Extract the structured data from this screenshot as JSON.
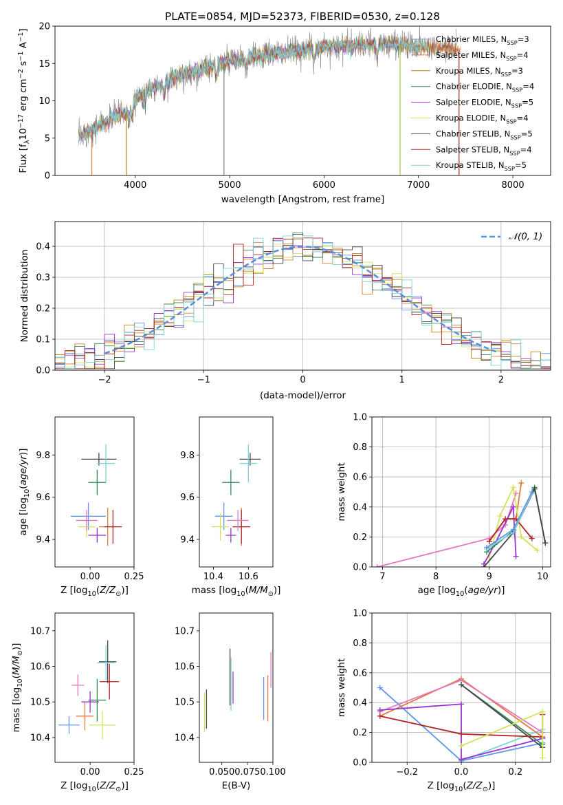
{
  "figure": {
    "title": "PLATE=0854, MJD=52373, FIBERID=0530, z=0.128"
  },
  "colors": {
    "Chabrier MILES": "#6495ed",
    "Salpeter MILES": "#e07b39",
    "Kroupa MILES": "#b8860b",
    "Chabrier ELODIE": "#2e8b57",
    "Salpeter ELODIE": "#9932cc",
    "Kroupa ELODIE": "#d4e157",
    "Chabrier STELIB": "#444444",
    "Salpeter STELIB": "#b22222",
    "Kroupa STELIB": "#7fd3dd",
    "normal": "#5b8fd8",
    "pink": "#e377c2"
  },
  "chart_data": [
    {
      "type": "line",
      "title": "PLATE=0854, MJD=52373, FIBERID=0530, z=0.128",
      "xlabel": "wavelength [Angstrom, rest frame]",
      "ylabel": "Flux [f",
      "ylabel_parts": [
        "Flux [f",
        "λ",
        "10",
        "−17",
        " erg cm",
        "−2",
        " s",
        "−1",
        " A",
        "−1",
        "]"
      ],
      "xlim": [
        3150,
        8400
      ],
      "ylim": [
        0,
        20
      ],
      "xticks": [
        4000,
        5000,
        6000,
        7000,
        8000
      ],
      "yticks": [
        0,
        5,
        10,
        15,
        20
      ],
      "legend_position": "top-right",
      "legend": [
        {
          "name": "Chabrier MILES, N",
          "sub": "SSP",
          "tail": "=3"
        },
        {
          "name": "Salpeter MILES, N",
          "sub": "SSP",
          "tail": "=4"
        },
        {
          "name": "Kroupa MILES, N",
          "sub": "SSP",
          "tail": "=3"
        },
        {
          "name": "Chabrier ELODIE, N",
          "sub": "SSP",
          "tail": "=4"
        },
        {
          "name": "Salpeter ELODIE, N",
          "sub": "SSP",
          "tail": "=5"
        },
        {
          "name": "Kroupa ELODIE, N",
          "sub": "SSP",
          "tail": "=4"
        },
        {
          "name": "Chabrier STELIB, N",
          "sub": "SSP",
          "tail": "=5"
        },
        {
          "name": "Salpeter STELIB, N",
          "sub": "SSP",
          "tail": "=4"
        },
        {
          "name": "Kroupa STELIB, N",
          "sub": "SSP",
          "tail": "=5"
        }
      ],
      "continuum": [
        [
          3400,
          5.2
        ],
        [
          3600,
          6.5
        ],
        [
          3700,
          7.2
        ],
        [
          3800,
          8.2
        ],
        [
          3900,
          8.4
        ],
        [
          4000,
          10.3
        ],
        [
          4100,
          11.2
        ],
        [
          4200,
          11.8
        ],
        [
          4300,
          12.2
        ],
        [
          4400,
          13.0
        ],
        [
          4600,
          13.8
        ],
        [
          4800,
          14.6
        ],
        [
          5000,
          15.3
        ],
        [
          5200,
          15.7
        ],
        [
          5400,
          16.2
        ],
        [
          5600,
          16.5
        ],
        [
          5800,
          16.9
        ],
        [
          6000,
          17.2
        ],
        [
          6200,
          17.4
        ],
        [
          6400,
          17.4
        ],
        [
          6600,
          17.6
        ],
        [
          6800,
          17.6
        ],
        [
          7000,
          17.3
        ],
        [
          7200,
          17.2
        ],
        [
          7400,
          17.0
        ]
      ],
      "absorption_features": [
        [
          3934,
          6.0
        ],
        [
          3969,
          6.8
        ],
        [
          4102,
          10.0
        ],
        [
          4305,
          10.5
        ],
        [
          4861,
          14.5
        ],
        [
          5175,
          14.0
        ],
        [
          5893,
          16.0
        ],
        [
          6563,
          16.2
        ]
      ]
    },
    {
      "type": "line",
      "xlabel": "(data-model)/error",
      "ylabel": "Normed distribution",
      "xlim": [
        -2.5,
        2.5
      ],
      "ylim": [
        0,
        0.48
      ],
      "xticks": [
        -2,
        -1,
        0,
        1,
        2
      ],
      "xtick_labels": [
        "−2",
        "−1",
        "0",
        "1",
        "2"
      ],
      "yticks": [
        0.0,
        0.1,
        0.2,
        0.3,
        0.4
      ],
      "ytick_labels": [
        "0.0",
        "0.1",
        "0.2",
        "0.3",
        "0.4"
      ],
      "legend": [
        "𝒩(0, 1)"
      ],
      "legend_position": "top-right",
      "bin_width": 0.1,
      "grid": true
    },
    {
      "type": "scatter",
      "xlabel": "Z [log10(Z/Z⊙)]",
      "ylabel": "age  [log10(age/yr)]",
      "xlim": [
        -0.2,
        0.25
      ],
      "ylim": [
        9.27,
        9.98
      ],
      "xticks": [
        0.0,
        0.25
      ],
      "xtick_labels": [
        "0.00",
        "0.25"
      ],
      "yticks": [
        9.4,
        9.6,
        9.8
      ],
      "ytick_labels": [
        "9.4",
        "9.6",
        "9.8"
      ],
      "points": [
        {
          "series": "Chabrier MILES",
          "x": -0.01,
          "y": 9.51,
          "xerr": 0.2,
          "yerr": 0.13
        },
        {
          "series": "Salpeter MILES",
          "x": 0.1,
          "y": 9.46,
          "xerr": 0.1,
          "yerr": 0.18
        },
        {
          "series": "Chabrier ELODIE",
          "x": 0.04,
          "y": 9.67,
          "xerr": 0.1,
          "yerr": 0.12
        },
        {
          "series": "Salpeter ELODIE",
          "x": 0.04,
          "y": 9.42,
          "xerr": 0.1,
          "yerr": 0.07
        },
        {
          "series": "Kroupa ELODIE",
          "x": -0.02,
          "y": 9.46,
          "xerr": 0.1,
          "yerr": 0.1
        },
        {
          "series": "Chabrier STELIB",
          "x": 0.05,
          "y": 9.78,
          "xerr": 0.2,
          "yerr": 0.06
        },
        {
          "series": "Salpeter STELIB",
          "x": 0.13,
          "y": 9.46,
          "xerr": 0.1,
          "yerr": 0.16
        },
        {
          "series": "Kroupa STELIB",
          "x": 0.09,
          "y": 9.76,
          "xerr": 0.1,
          "yerr": 0.18
        },
        {
          "series": "pink",
          "x": -0.02,
          "y": 9.49,
          "xerr": 0.12,
          "yerr": 0.1
        }
      ]
    },
    {
      "type": "scatter",
      "xlabel": "mass [log10(M/M⊙)]",
      "xlim": [
        10.32,
        10.74
      ],
      "ylim": [
        9.27,
        9.98
      ],
      "xticks": [
        10.4,
        10.6
      ],
      "xtick_labels": [
        "10.4",
        "10.6"
      ],
      "yticks": [
        9.4,
        9.6,
        9.8
      ],
      "ytick_labels": [
        "9.4",
        "9.6",
        "9.8"
      ],
      "points": [
        {
          "series": "Chabrier MILES",
          "x": 10.46,
          "y": 9.51,
          "xerr": 0.1,
          "yerr": 0.13
        },
        {
          "series": "Salpeter MILES",
          "x": 10.56,
          "y": 9.46,
          "xerr": 0.1,
          "yerr": 0.18
        },
        {
          "series": "Chabrier ELODIE",
          "x": 10.5,
          "y": 9.67,
          "xerr": 0.1,
          "yerr": 0.12
        },
        {
          "series": "Salpeter ELODIE",
          "x": 10.5,
          "y": 9.42,
          "xerr": 0.06,
          "yerr": 0.07
        },
        {
          "series": "Kroupa ELODIE",
          "x": 10.44,
          "y": 9.46,
          "xerr": 0.1,
          "yerr": 0.13
        },
        {
          "series": "Chabrier STELIB",
          "x": 10.61,
          "y": 9.78,
          "xerr": 0.12,
          "yerr": 0.06
        },
        {
          "series": "Salpeter STELIB",
          "x": 10.56,
          "y": 9.46,
          "xerr": 0.1,
          "yerr": 0.16
        },
        {
          "series": "Kroupa STELIB",
          "x": 10.6,
          "y": 9.76,
          "xerr": 0.1,
          "yerr": 0.18
        },
        {
          "series": "pink",
          "x": 10.54,
          "y": 9.49,
          "xerr": 0.12,
          "yerr": 0.1
        }
      ]
    },
    {
      "type": "line",
      "xlabel": "age  [log10(age/yr)]",
      "ylabel": "mass weight",
      "xlim": [
        6.8,
        10.15
      ],
      "ylim": [
        0,
        1.0
      ],
      "xticks": [
        7,
        8,
        9,
        10
      ],
      "yticks": [
        0.0,
        0.2,
        0.4,
        0.6,
        0.8,
        1.0
      ],
      "ytick_labels": [
        "0.0",
        "0.2",
        "0.4",
        "0.6",
        "0.8",
        "1.0"
      ],
      "grid": true,
      "series": [
        {
          "name": "pink",
          "x": [
            6.9,
            9.0,
            9.3,
            9.5
          ],
          "y": [
            0.0,
            0.19,
            0.28,
            0.49
          ]
        },
        {
          "name": "Salpeter MILES",
          "x": [
            9.0,
            9.3,
            9.5,
            9.6
          ],
          "y": [
            0.17,
            0.32,
            0.32,
            0.56
          ]
        },
        {
          "name": "Kroupa ELODIE",
          "x": [
            9.0,
            9.2,
            9.45,
            9.6,
            9.9
          ],
          "y": [
            0.06,
            0.34,
            0.53,
            0.2,
            0.11
          ]
        },
        {
          "name": "Salpeter ELODIE",
          "x": [
            8.9,
            9.1,
            9.45,
            9.5
          ],
          "y": [
            0.02,
            0.15,
            0.4,
            0.07
          ]
        },
        {
          "name": "Salpeter STELIB",
          "x": [
            9.0,
            9.3,
            9.5,
            9.8
          ],
          "y": [
            0.17,
            0.32,
            0.32,
            0.19
          ]
        },
        {
          "name": "Chabrier ELODIE",
          "x": [
            8.95,
            9.45,
            9.85,
            10.05
          ],
          "y": [
            0.1,
            0.24,
            0.53,
            0.16
          ]
        },
        {
          "name": "Chabrier STELIB",
          "x": [
            8.9,
            9.45,
            9.85,
            10.05
          ],
          "y": [
            0.0,
            0.23,
            0.52,
            0.16
          ]
        },
        {
          "name": "Kroupa STELIB",
          "x": [
            8.95,
            9.45,
            9.8
          ],
          "y": [
            0.12,
            0.23,
            0.49
          ]
        },
        {
          "name": "Chabrier MILES",
          "x": [
            8.95,
            9.45,
            9.8
          ],
          "y": [
            0.13,
            0.25,
            0.5
          ]
        }
      ]
    },
    {
      "type": "scatter",
      "xlabel": "Z [log10(Z/Z⊙)]",
      "ylabel": "mass [log10(M/M⊙)]",
      "xlim": [
        -0.2,
        0.25
      ],
      "ylim": [
        10.33,
        10.75
      ],
      "xticks": [
        0.0,
        0.25
      ],
      "xtick_labels": [
        "0.00",
        "0.25"
      ],
      "yticks": [
        10.4,
        10.5,
        10.6,
        10.7
      ],
      "ytick_labels": [
        "10.4",
        "10.5",
        "10.6",
        "10.7"
      ],
      "points": [
        {
          "series": "Chabrier MILES",
          "x": -0.12,
          "y": 10.435,
          "xerr": 0.12,
          "yerr": 0.05
        },
        {
          "series": "Salpeter MILES",
          "x": -0.03,
          "y": 10.46,
          "xerr": 0.1,
          "yerr": 0.08
        },
        {
          "series": "Chabrier ELODIE",
          "x": 0.04,
          "y": 10.505,
          "xerr": 0.1,
          "yerr": 0.12
        },
        {
          "series": "Salpeter ELODIE",
          "x": 0.0,
          "y": 10.5,
          "xerr": 0.1,
          "yerr": 0.06
        },
        {
          "series": "Kroupa ELODIE",
          "x": 0.07,
          "y": 10.435,
          "xerr": 0.15,
          "yerr": 0.08
        },
        {
          "series": "Chabrier STELIB",
          "x": 0.1,
          "y": 10.613,
          "xerr": 0.1,
          "yerr": 0.12
        },
        {
          "series": "Salpeter STELIB",
          "x": 0.11,
          "y": 10.557,
          "xerr": 0.11,
          "yerr": 0.1
        },
        {
          "series": "Kroupa STELIB",
          "x": 0.09,
          "y": 10.61,
          "xerr": 0.1,
          "yerr": 0.1
        },
        {
          "series": "pink",
          "x": -0.07,
          "y": 10.547,
          "xerr": 0.07,
          "yerr": 0.06
        }
      ]
    },
    {
      "type": "scatter",
      "xlabel": "E(B-V)",
      "xlim": [
        0.028,
        0.1
      ],
      "ylim": [
        10.33,
        10.75
      ],
      "xticks": [
        0.05,
        0.075,
        0.1
      ],
      "xtick_labels": [
        "0.050",
        "0.075",
        "0.100"
      ],
      "yticks": [
        10.4,
        10.5,
        10.6,
        10.7
      ],
      "ytick_labels": [
        "10.4",
        "10.5",
        "10.6",
        "10.7"
      ],
      "points": [
        {
          "series": "Kroupa ELODIE",
          "x": 0.033,
          "y": 10.47,
          "yerr": 0.11
        },
        {
          "series": "Chabrier STELIB",
          "x": 0.035,
          "y": 10.48,
          "yerr": 0.11
        },
        {
          "series": "Chabrier STELIB",
          "x": 0.058,
          "y": 10.57,
          "yerr": 0.16
        },
        {
          "series": "Kroupa STELIB",
          "x": 0.059,
          "y": 10.55,
          "yerr": 0.15
        },
        {
          "series": "Salpeter ELODIE",
          "x": 0.061,
          "y": 10.54,
          "yerr": 0.09
        },
        {
          "series": "Chabrier MILES",
          "x": 0.091,
          "y": 10.51,
          "yerr": 0.12
        },
        {
          "series": "Salpeter MILES",
          "x": 0.095,
          "y": 10.51,
          "yerr": 0.13
        },
        {
          "series": "pink",
          "x": 0.098,
          "y": 10.59,
          "yerr": 0.1
        }
      ]
    },
    {
      "type": "line",
      "xlabel": "Z [log10(Z/Z⊙)]",
      "ylabel": "mass weight",
      "xlim": [
        -0.33,
        0.33
      ],
      "ylim": [
        0,
        1.0
      ],
      "xticks": [
        -0.2,
        0.0,
        0.2
      ],
      "xtick_labels": [
        "−0.2",
        "0.0",
        "0.2"
      ],
      "yticks": [
        0.0,
        0.2,
        0.4,
        0.6,
        0.8,
        1.0
      ],
      "ytick_labels": [
        "0.0",
        "0.2",
        "0.4",
        "0.6",
        "0.8",
        "1.0"
      ],
      "grid": true,
      "series": [
        {
          "name": "Kroupa STELIB",
          "x": [
            -0.3,
            0.0,
            0.3
          ],
          "y": [
            0.5,
            0.01,
            0.22
          ]
        },
        {
          "name": "Chabrier MILES",
          "x": [
            -0.3,
            0.0,
            0.3
          ],
          "y": [
            0.5,
            0.01,
            0.13
          ]
        },
        {
          "name": "Salpeter MILES",
          "x": [
            -0.3,
            0.0,
            0.3
          ],
          "y": [
            0.31,
            0.56,
            0.17
          ]
        },
        {
          "name": "pink",
          "x": [
            -0.3,
            0.0,
            0.3
          ],
          "y": [
            0.34,
            0.55,
            0.2
          ]
        },
        {
          "name": "Chabrier ELODIE",
          "x": [
            0.0,
            0.3
          ],
          "y": [
            0.52,
            0.12
          ]
        },
        {
          "name": "Chabrier STELIB",
          "x": [
            0.0,
            0.3
          ],
          "y": [
            0.52,
            0.1
          ]
        },
        {
          "name": "Salpeter ELODIE",
          "x": [
            -0.3,
            0.0,
            0.0,
            0.3
          ],
          "y": [
            0.35,
            0.39,
            0.02,
            0.16
          ]
        },
        {
          "name": "Salpeter STELIB",
          "x": [
            -0.3,
            0.0,
            0.3,
            0.3
          ],
          "y": [
            0.31,
            0.19,
            0.17,
            0.32
          ]
        },
        {
          "name": "Kroupa ELODIE",
          "x": [
            0.0,
            0.3,
            0.3
          ],
          "y": [
            0.11,
            0.34,
            0.03
          ]
        }
      ]
    }
  ]
}
